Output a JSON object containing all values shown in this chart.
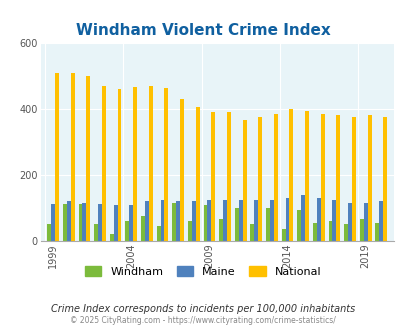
{
  "title": "Windham Violent Crime Index",
  "title_color": "#1060a0",
  "subtitle": "Crime Index corresponds to incidents per 100,000 inhabitants",
  "footer": "© 2025 CityRating.com - https://www.cityrating.com/crime-statistics/",
  "years": [
    1999,
    2000,
    2001,
    2002,
    2003,
    2004,
    2005,
    2006,
    2007,
    2008,
    2009,
    2010,
    2011,
    2012,
    2013,
    2014,
    2015,
    2016,
    2017,
    2018,
    2019,
    2020
  ],
  "windham": [
    50,
    113,
    112,
    50,
    20,
    60,
    75,
    45,
    115,
    60,
    110,
    65,
    100,
    50,
    100,
    35,
    95,
    55,
    60,
    50,
    65,
    55
  ],
  "maine": [
    113,
    120,
    115,
    113,
    110,
    108,
    120,
    123,
    120,
    120,
    125,
    125,
    125,
    125,
    125,
    130,
    140,
    130,
    125,
    115,
    115,
    120
  ],
  "national": [
    510,
    510,
    500,
    470,
    460,
    465,
    470,
    462,
    430,
    405,
    390,
    390,
    365,
    375,
    385,
    400,
    395,
    385,
    380,
    375,
    380,
    375
  ],
  "windham_color": "#7cbb3c",
  "maine_color": "#4f81bd",
  "national_color": "#ffc000",
  "bg_color": "#e8f4f8",
  "ylim": [
    0,
    600
  ],
  "yticks": [
    0,
    200,
    400,
    600
  ],
  "bar_width": 0.25,
  "figsize": [
    4.06,
    3.3
  ],
  "dpi": 100
}
